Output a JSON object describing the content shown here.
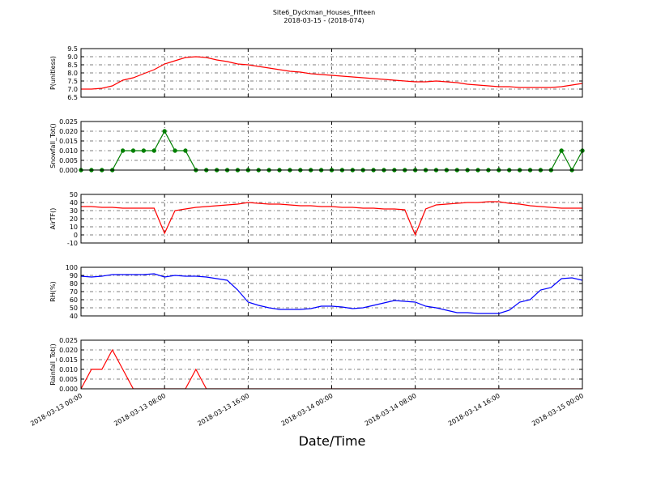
{
  "chart_data": {
    "type": "line",
    "title": "Site6_Dyckman_Houses_Fifteen",
    "subtitle": "2018-03-15 - (2018-074)",
    "xlabel": "Date/Time",
    "xlim": [
      "2018-03-13 00:00",
      "2018-03-15 00:00"
    ],
    "xticks": [
      "2018-03-13 00:00",
      "2018-03-13 08:00",
      "2018-03-13 16:00",
      "2018-03-14 00:00",
      "2018-03-14 08:00",
      "2018-03-14 16:00",
      "2018-03-15 00:00"
    ],
    "grid": true,
    "x": [
      "2018-03-13 00:00",
      "2018-03-13 01:00",
      "2018-03-13 02:00",
      "2018-03-13 03:00",
      "2018-03-13 04:00",
      "2018-03-13 05:00",
      "2018-03-13 06:00",
      "2018-03-13 07:00",
      "2018-03-13 08:00",
      "2018-03-13 09:00",
      "2018-03-13 10:00",
      "2018-03-13 11:00",
      "2018-03-13 12:00",
      "2018-03-13 13:00",
      "2018-03-13 14:00",
      "2018-03-13 15:00",
      "2018-03-13 16:00",
      "2018-03-13 17:00",
      "2018-03-13 18:00",
      "2018-03-13 19:00",
      "2018-03-13 20:00",
      "2018-03-13 21:00",
      "2018-03-13 22:00",
      "2018-03-13 23:00",
      "2018-03-14 00:00",
      "2018-03-14 01:00",
      "2018-03-14 02:00",
      "2018-03-14 03:00",
      "2018-03-14 04:00",
      "2018-03-14 05:00",
      "2018-03-14 06:00",
      "2018-03-14 07:00",
      "2018-03-14 08:00",
      "2018-03-14 09:00",
      "2018-03-14 10:00",
      "2018-03-14 11:00",
      "2018-03-14 12:00",
      "2018-03-14 13:00",
      "2018-03-14 14:00",
      "2018-03-14 15:00",
      "2018-03-14 16:00",
      "2018-03-14 17:00",
      "2018-03-14 18:00",
      "2018-03-14 19:00",
      "2018-03-14 20:00",
      "2018-03-14 21:00",
      "2018-03-14 22:00",
      "2018-03-14 23:00",
      "2018-03-15 00:00"
    ],
    "panels": [
      {
        "ylabel": "P(unitless)",
        "ylim": [
          6.5,
          9.5
        ],
        "yticks": [
          6.5,
          {
            "value": 7,
            "label": "7.0"
          },
          7.5,
          {
            "value": 8,
            "label": "8.0"
          },
          8.5,
          {
            "value": 9,
            "label": "9.0"
          },
          9.5
        ],
        "series": [
          {
            "color": "#ff0000",
            "values": [
              7.0,
              7.0,
              7.05,
              7.2,
              7.55,
              7.7,
              7.95,
              8.2,
              8.55,
              8.75,
              8.95,
              9.0,
              8.95,
              8.8,
              8.7,
              8.55,
              8.5,
              8.4,
              8.3,
              8.2,
              8.1,
              8.05,
              7.95,
              7.9,
              7.85,
              7.8,
              7.75,
              7.7,
              7.65,
              7.6,
              7.55,
              7.5,
              7.45,
              7.45,
              7.5,
              7.45,
              7.4,
              7.3,
              7.25,
              7.2,
              7.15,
              7.15,
              7.1,
              7.1,
              7.1,
              7.1,
              7.15,
              7.25,
              7.35
            ]
          }
        ]
      },
      {
        "ylabel": "Snowfall_Tot()",
        "ylim": [
          0,
          0.025
        ],
        "yticks": [
          {
            "value": 0,
            "label": "0.000"
          },
          0.005,
          {
            "value": 0.01,
            "label": "0.010"
          },
          0.015,
          {
            "value": 0.02,
            "label": "0.020"
          },
          0.025
        ],
        "series": [
          {
            "color": "#007f00",
            "marker": true,
            "values": [
              0,
              0,
              0,
              0,
              0.01,
              0.01,
              0.01,
              0.01,
              0.02,
              0.01,
              0.01,
              0,
              0,
              0,
              0,
              0,
              0,
              0,
              0,
              0,
              0,
              0,
              0,
              0,
              0,
              0,
              0,
              0,
              0,
              0,
              0,
              0,
              0,
              0,
              0,
              0,
              0,
              0,
              0,
              0,
              0,
              0,
              0,
              0,
              0,
              0,
              0.01,
              0,
              0.01
            ]
          }
        ]
      },
      {
        "ylabel": "AirTF()",
        "ylim": [
          -10,
          50
        ],
        "yticks": [
          -10,
          0,
          10,
          20,
          30,
          40,
          50
        ],
        "series": [
          {
            "color": "#ff0000",
            "values": [
              35,
              35,
              34,
              34,
              33,
              33,
              33,
              33,
              2,
              30,
              32,
              34,
              35,
              36,
              37,
              38,
              40,
              39,
              38,
              38,
              37,
              36,
              36,
              35,
              35,
              34,
              34,
              33,
              33,
              32,
              32,
              31,
              0,
              32,
              37,
              38,
              39,
              40,
              40,
              41,
              41,
              39,
              38,
              36,
              35,
              34,
              33,
              33,
              33
            ]
          }
        ]
      },
      {
        "ylabel": "RH(%)",
        "ylim": [
          40,
          100
        ],
        "yticks": [
          40,
          50,
          60,
          70,
          80,
          90,
          100
        ],
        "series": [
          {
            "color": "#0000ff",
            "values": [
              89,
              88,
              89,
              91,
              91,
              91,
              91,
              92,
              88,
              90,
              89,
              89,
              88,
              86,
              84,
              72,
              57,
              53,
              50,
              48,
              48,
              48,
              49,
              52,
              52,
              51,
              49,
              50,
              53,
              56,
              59,
              58,
              57,
              52,
              50,
              47,
              44,
              44,
              43,
              43,
              43,
              47,
              57,
              60,
              72,
              75,
              86,
              87,
              84
            ]
          }
        ]
      },
      {
        "ylabel": "Rainfall_Tot()",
        "ylim": [
          0,
          0.025
        ],
        "yticks": [
          {
            "value": 0,
            "label": "0.000"
          },
          0.005,
          {
            "value": 0.01,
            "label": "0.010"
          },
          0.015,
          {
            "value": 0.02,
            "label": "0.020"
          },
          0.025
        ],
        "series": [
          {
            "color": "#ff0000",
            "values": [
              0,
              0.01,
              0.01,
              0.02,
              0.01,
              0,
              0,
              0,
              0,
              0,
              0,
              0.01,
              0,
              0,
              0,
              0,
              0,
              0,
              0,
              0,
              0,
              0,
              0,
              0,
              0,
              0,
              0,
              0,
              0,
              0,
              0,
              0,
              0,
              0,
              0,
              0,
              0,
              0,
              0,
              0,
              0,
              0,
              0,
              0,
              0,
              0,
              0,
              0,
              0
            ]
          }
        ]
      }
    ]
  }
}
